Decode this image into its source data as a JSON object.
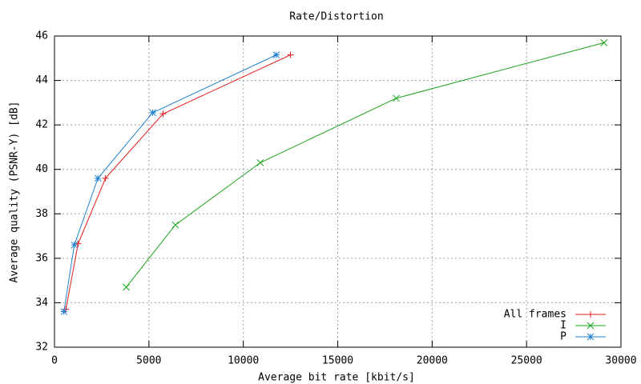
{
  "chart_data": {
    "type": "line",
    "title": "Rate/Distortion",
    "x_label": "Average bit rate [kbit/s]",
    "y_label": "Average quality (PSNR-Y) [dB]",
    "xlim": [
      0,
      30000
    ],
    "xticks": [
      0,
      5000,
      10000,
      15000,
      20000,
      25000,
      30000
    ],
    "ylim": [
      32,
      46
    ],
    "yticks": [
      32,
      34,
      36,
      38,
      40,
      42,
      44,
      46
    ],
    "grid": true,
    "legend": "bottom-right",
    "series": [
      {
        "name": "All frames",
        "color": "#e41a1c",
        "marker": "+",
        "x": [
          600,
          1250,
          2700,
          5750,
          12500
        ],
        "values": [
          33.7,
          36.65,
          39.6,
          42.5,
          45.15
        ]
      },
      {
        "name": "I",
        "color": "#1aa31a",
        "marker": "x",
        "x": [
          3800,
          6400,
          10900,
          18100,
          29100
        ],
        "values": [
          34.7,
          37.5,
          40.3,
          43.2,
          45.7
        ]
      },
      {
        "name": "P",
        "color": "#2080d0",
        "marker": "*",
        "x": [
          500,
          1050,
          2300,
          5200,
          11750
        ],
        "values": [
          33.6,
          36.6,
          39.6,
          42.55,
          45.15
        ]
      }
    ]
  }
}
